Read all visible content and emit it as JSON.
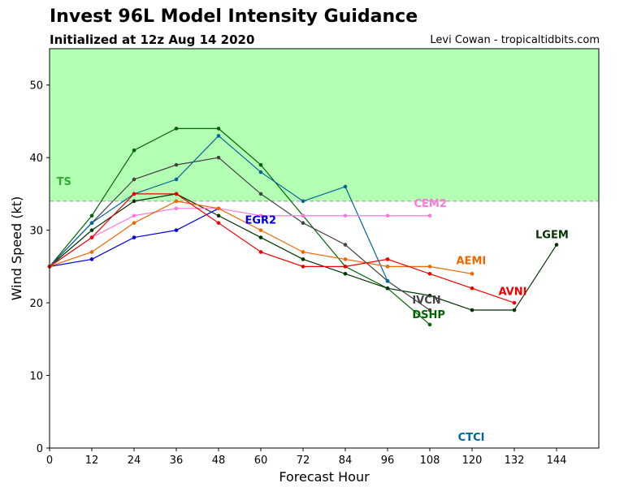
{
  "header": {
    "title": "Invest 96L Model Intensity Guidance",
    "subtitle": "Initialized at 12z Aug 14 2020",
    "credit": "Levi Cowan - tropicaltidbits.com"
  },
  "chart_data": {
    "type": "line",
    "title": "Invest 96L Model Intensity Guidance",
    "subtitle": "Initialized at 12z Aug 14 2020",
    "xlabel": "Forecast Hour",
    "ylabel": "Wind Speed (kt)",
    "xlim": [
      0,
      156
    ],
    "ylim": [
      0,
      55
    ],
    "xticks": [
      0,
      12,
      24,
      36,
      48,
      60,
      72,
      84,
      96,
      108,
      120,
      132,
      144
    ],
    "yticks": [
      0,
      10,
      20,
      30,
      40,
      50
    ],
    "grid": false,
    "legend": "inline labels at series ends",
    "thresholds": [
      {
        "name": "TS",
        "value": 34,
        "fill": "#b3ffb3",
        "line_color": "#999999",
        "label_color": "#33aa33"
      }
    ],
    "series": [
      {
        "name": "DSHP",
        "color": "#006400",
        "x": [
          0,
          12,
          24,
          36,
          48,
          60,
          72,
          84,
          96,
          108
        ],
        "y": [
          25,
          32,
          41,
          44,
          44,
          39,
          32,
          25,
          22,
          17
        ]
      },
      {
        "name": "LGEM",
        "color": "#003300",
        "x": [
          0,
          12,
          24,
          36,
          48,
          60,
          72,
          84,
          96,
          108,
          120,
          132,
          144
        ],
        "y": [
          25,
          30,
          34,
          35,
          32,
          29,
          26,
          24,
          22,
          21,
          19,
          19,
          28
        ]
      },
      {
        "name": "IVCN",
        "color": "#444444",
        "x": [
          0,
          12,
          24,
          36,
          48,
          60,
          72,
          84,
          96,
          108
        ],
        "y": [
          25,
          31,
          37,
          39,
          40,
          35,
          31,
          28,
          23,
          19
        ]
      },
      {
        "name": "CTCI",
        "color": "#006699",
        "x": [
          0,
          12,
          24,
          36,
          48,
          60,
          72,
          84,
          96
        ],
        "y": [
          25,
          31,
          35,
          37,
          43,
          38,
          34,
          36,
          23
        ]
      },
      {
        "name": "EGR2",
        "color": "#0000dd",
        "x": [
          0,
          12,
          24,
          36,
          48
        ],
        "y": [
          25,
          26,
          29,
          30,
          33
        ]
      },
      {
        "name": "CEM2",
        "color": "#ff77dd",
        "x": [
          0,
          12,
          24,
          36,
          48,
          60,
          72,
          84,
          96,
          108
        ],
        "y": [
          25,
          29,
          32,
          33,
          33,
          32,
          32,
          32,
          32,
          32
        ]
      },
      {
        "name": "AEMI",
        "color": "#ee6600",
        "x": [
          0,
          12,
          24,
          36,
          48,
          60,
          72,
          84,
          96,
          108,
          120
        ],
        "y": [
          25,
          27,
          31,
          34,
          33,
          30,
          27,
          26,
          25,
          25,
          24
        ]
      },
      {
        "name": "AVNI",
        "color": "#ee0000",
        "x": [
          0,
          12,
          24,
          36,
          48,
          60,
          72,
          84,
          96,
          108,
          120,
          132
        ],
        "y": [
          25,
          29,
          35,
          35,
          31,
          27,
          25,
          25,
          26,
          24,
          22,
          20
        ]
      }
    ],
    "labels": [
      {
        "text": "TS",
        "x": 2,
        "y": 36.2,
        "color": "#33aa33"
      },
      {
        "text": "EGR2",
        "x": 55.5,
        "y": 30.9,
        "color": "#0000dd"
      },
      {
        "text": "CEM2",
        "x": 103.5,
        "y": 33.2,
        "color": "#ff77dd"
      },
      {
        "text": "LGEM",
        "x": 138,
        "y": 28.9,
        "color": "#003300"
      },
      {
        "text": "AEMI",
        "x": 115.5,
        "y": 25.3,
        "color": "#ee6600"
      },
      {
        "text": "AVNI",
        "x": 127.5,
        "y": 21.1,
        "color": "#ee0000"
      },
      {
        "text": "IVCN",
        "x": 103,
        "y": 19.9,
        "color": "#444444"
      },
      {
        "text": "DSHP",
        "x": 103,
        "y": 17.9,
        "color": "#006400"
      },
      {
        "text": "CTCI",
        "x": 116,
        "y": 1.0,
        "color": "#006699"
      }
    ]
  }
}
